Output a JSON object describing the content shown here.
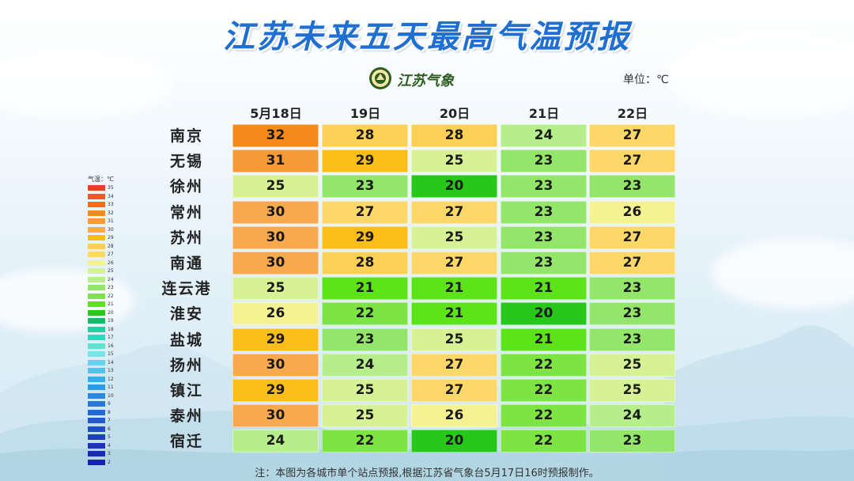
{
  "title": "江苏未来五天最高气温预报",
  "logo_text": "江苏气象",
  "unit_label": "单位：℃",
  "footnote": "注：本图为各城市单个站点预报,根据江苏省气象台5月17日16时预报制作。",
  "chart_data": {
    "type": "heatmap",
    "title": "江苏未来五天最高气温预报",
    "columns": [
      "5月18日",
      "19日",
      "20日",
      "21日",
      "22日"
    ],
    "rows": [
      "南京",
      "无锡",
      "徐州",
      "常州",
      "苏州",
      "南通",
      "连云港",
      "淮安",
      "盐城",
      "扬州",
      "镇江",
      "泰州",
      "宿迁"
    ],
    "values": [
      [
        32,
        28,
        28,
        24,
        27
      ],
      [
        31,
        29,
        25,
        23,
        27
      ],
      [
        25,
        23,
        20,
        23,
        23
      ],
      [
        30,
        27,
        27,
        23,
        26
      ],
      [
        30,
        29,
        25,
        23,
        27
      ],
      [
        30,
        28,
        27,
        23,
        27
      ],
      [
        25,
        21,
        21,
        21,
        23
      ],
      [
        26,
        22,
        21,
        20,
        23
      ],
      [
        29,
        23,
        25,
        21,
        23
      ],
      [
        30,
        24,
        27,
        22,
        25
      ],
      [
        29,
        25,
        27,
        22,
        25
      ],
      [
        30,
        25,
        26,
        22,
        24
      ],
      [
        24,
        22,
        20,
        22,
        23
      ]
    ],
    "legend": {
      "title": "气温：℃",
      "labels": [
        35,
        34,
        33,
        32,
        31,
        30,
        29,
        28,
        27,
        26,
        25,
        24,
        23,
        22,
        21,
        20,
        19,
        18,
        17,
        16,
        15,
        14,
        13,
        12,
        11,
        10,
        9,
        8,
        7,
        6,
        5,
        4,
        3,
        2
      ]
    },
    "colors": {
      "35": "#e8412a",
      "34": "#ef5a22",
      "33": "#f26e1e",
      "32": "#f58a1a",
      "31": "#f79a38",
      "30": "#f8a94e",
      "29": "#fbbd1a",
      "28": "#fcd054",
      "27": "#fdd868",
      "26": "#f5f291",
      "25": "#d6f294",
      "24": "#b7ee8c",
      "23": "#94e66a",
      "22": "#7ce443",
      "21": "#5ce319",
      "20": "#27c81a",
      "19": "#12bd6a",
      "18": "#1dd3a0",
      "17": "#2ed9bc",
      "16": "#5de3d1",
      "15": "#7fe0e8",
      "14": "#66d3ee",
      "13": "#4fc3ee",
      "12": "#35aeee",
      "11": "#2b9be7",
      "10": "#2988e0",
      "9": "#2778da",
      "8": "#2568d4",
      "7": "#2359cd",
      "6": "#204bc6",
      "5": "#1e3ec0",
      "4": "#1c33ba",
      "3": "#1a2ab4",
      "2": "#1822ae"
    }
  }
}
